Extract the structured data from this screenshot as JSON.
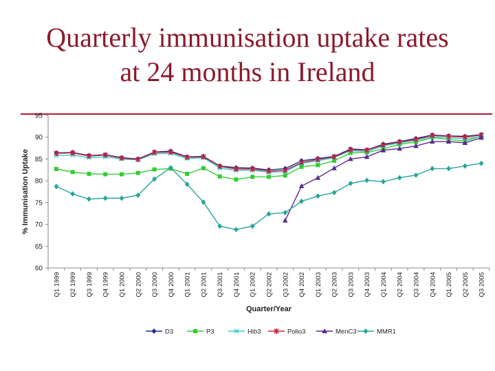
{
  "slide": {
    "title_line1": "Quarterly immunisation uptake rates",
    "title_line2": "at 24 months in Ireland",
    "accent_color": "#b01c2e",
    "title_color": "#8b1a2b"
  },
  "chart_data": {
    "type": "line",
    "title": "",
    "xlabel": "Quarter/Year",
    "ylabel": "% Immunisation Uptake",
    "ylim": [
      60,
      95
    ],
    "yticks": [
      60,
      65,
      70,
      75,
      80,
      85,
      90,
      95
    ],
    "grid": false,
    "legend_position": "bottom",
    "categories": [
      "Q1 1999",
      "Q2 1999",
      "Q3 1999",
      "Q4 1999",
      "Q1 2000",
      "Q2 2000",
      "Q3 2000",
      "Q4 2000",
      "Q1 2001",
      "Q2 2001",
      "Q3 2001",
      "Q4 2001",
      "Q1 2002",
      "Q2 2002",
      "Q3 2002",
      "Q4 2002",
      "Q1 2003",
      "Q2 2003",
      "Q3 2003",
      "Q4 2003",
      "Q1 2004",
      "Q2 2004",
      "Q3 2004",
      "Q4 2004",
      "Q1 2005",
      "Q2 2005",
      "Q3 2005"
    ],
    "series": [
      {
        "name": "D3",
        "color": "#1f2a8c",
        "marker": "diamond",
        "values": [
          86.4,
          86.5,
          85.8,
          86.0,
          85.3,
          85.0,
          86.6,
          86.8,
          85.5,
          85.6,
          83.4,
          83.0,
          82.9,
          82.5,
          82.8,
          84.6,
          85.1,
          85.6,
          87.3,
          87.1,
          88.4,
          89.0,
          89.7,
          90.5,
          90.3,
          90.2,
          90.6
        ]
      },
      {
        "name": "P3",
        "color": "#33cc33",
        "marker": "square",
        "values": [
          82.7,
          82.0,
          81.6,
          81.5,
          81.5,
          81.8,
          82.6,
          82.8,
          81.6,
          82.9,
          81.0,
          80.3,
          80.9,
          80.9,
          81.2,
          83.2,
          83.6,
          84.6,
          86.4,
          86.5,
          87.3,
          88.4,
          88.9,
          89.9,
          89.5,
          89.1,
          90.3
        ]
      },
      {
        "name": "Hib3",
        "color": "#33cccc",
        "marker": "x",
        "values": [
          85.8,
          85.9,
          85.3,
          85.5,
          85.0,
          84.8,
          86.2,
          86.3,
          85.1,
          85.3,
          82.9,
          82.4,
          82.4,
          82.0,
          82.1,
          84.0,
          84.6,
          85.3,
          86.9,
          86.7,
          88.0,
          88.7,
          89.3,
          90.1,
          89.9,
          89.6,
          90.2
        ]
      },
      {
        "name": "Polio3",
        "color": "#c0203a",
        "marker": "star",
        "values": [
          86.3,
          86.4,
          85.7,
          85.9,
          85.2,
          84.9,
          86.5,
          86.6,
          85.4,
          85.5,
          83.3,
          82.7,
          82.7,
          82.2,
          82.4,
          84.2,
          84.9,
          85.5,
          87.1,
          87.0,
          88.2,
          88.9,
          89.5,
          90.4,
          90.2,
          90.0,
          90.5
        ]
      },
      {
        "name": "MenC3",
        "color": "#5a2a8c",
        "marker": "triangle",
        "values": [
          null,
          null,
          null,
          null,
          null,
          null,
          null,
          null,
          null,
          null,
          null,
          null,
          null,
          null,
          70.9,
          78.8,
          80.7,
          82.9,
          85.0,
          85.5,
          87.0,
          87.4,
          88.0,
          89.0,
          89.0,
          88.7,
          89.9
        ]
      },
      {
        "name": "MMR1",
        "color": "#26a69a",
        "marker": "diamond",
        "values": [
          78.7,
          77.0,
          75.8,
          76.0,
          76.0,
          76.7,
          80.4,
          83.0,
          79.2,
          75.1,
          69.6,
          68.8,
          69.6,
          72.4,
          72.7,
          75.3,
          76.5,
          77.3,
          79.4,
          80.1,
          79.8,
          80.7,
          81.3,
          82.8,
          82.8,
          83.4,
          84.0
        ]
      }
    ]
  }
}
